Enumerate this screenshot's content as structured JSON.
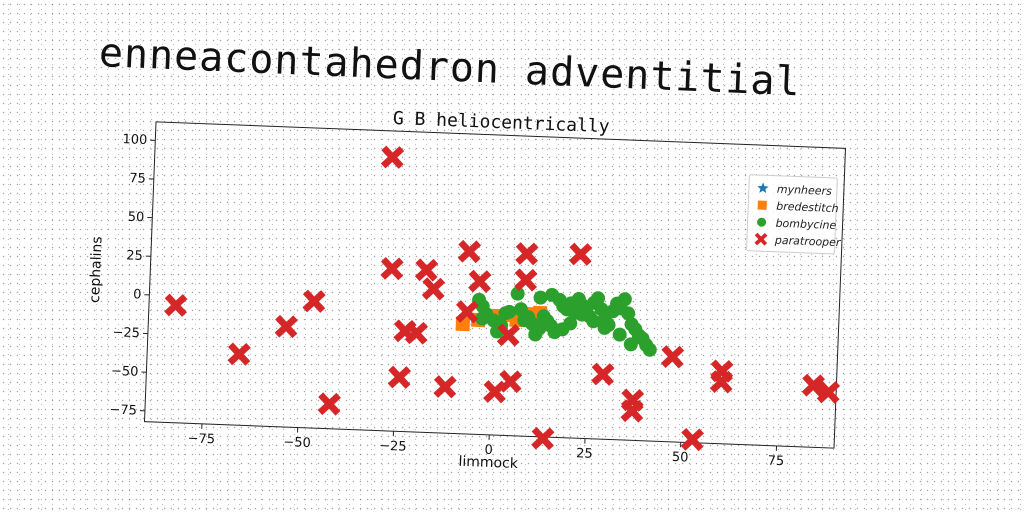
{
  "page": {
    "title": "enneacontahedron adventitial"
  },
  "chart_data": {
    "type": "scatter",
    "title": "G B heliocentrically",
    "xlabel": "limmock",
    "ylabel": "cephalins",
    "xlim": [
      -90,
      90
    ],
    "ylim": [
      -82,
      112
    ],
    "x_ticks": [
      -75,
      -50,
      -25,
      0,
      25,
      50,
      75
    ],
    "y_ticks": [
      100,
      75,
      50,
      25,
      0,
      -25,
      -50,
      -75
    ],
    "grid": false,
    "legend_position": "top-right",
    "series": [
      {
        "name": "mynheers",
        "marker": "star",
        "color": "#1f77b4",
        "points": []
      },
      {
        "name": "bredestitch",
        "marker": "square",
        "color": "#ff7f0e",
        "points": [
          [
            -8,
            -11
          ],
          [
            -4,
            -8
          ],
          [
            1,
            -5
          ],
          [
            5,
            -4
          ],
          [
            9,
            -3
          ],
          [
            10,
            -6
          ],
          [
            12,
            -2
          ],
          [
            6,
            -7
          ]
        ]
      },
      {
        "name": "bombycine",
        "marker": "circle",
        "color": "#2ca02c",
        "points": [
          [
            -4,
            5
          ],
          [
            -3,
            1
          ],
          [
            -2,
            -4
          ],
          [
            -3,
            -7
          ],
          [
            0,
            -8
          ],
          [
            1,
            -15
          ],
          [
            2,
            -11
          ],
          [
            3,
            -3
          ],
          [
            4,
            -2
          ],
          [
            6,
            10
          ],
          [
            7,
            0
          ],
          [
            8,
            -7
          ],
          [
            9,
            -5
          ],
          [
            10,
            -9
          ],
          [
            11,
            -16
          ],
          [
            12,
            -12
          ],
          [
            13,
            -4
          ],
          [
            14,
            -7
          ],
          [
            15,
            -10
          ],
          [
            16,
            -14
          ],
          [
            17,
            7
          ],
          [
            18,
            3
          ],
          [
            19,
            1
          ],
          [
            20,
            5
          ],
          [
            21,
            -1
          ],
          [
            22,
            8
          ],
          [
            23,
            4
          ],
          [
            24,
            2
          ],
          [
            25,
            -3
          ],
          [
            26,
            6
          ],
          [
            27,
            9
          ],
          [
            28,
            2
          ],
          [
            29,
            -4
          ],
          [
            30,
            -8
          ],
          [
            31,
            1
          ],
          [
            32,
            6
          ],
          [
            33,
            3
          ],
          [
            34,
            9
          ],
          [
            35,
            0
          ],
          [
            36,
            -7
          ],
          [
            37,
            -10
          ],
          [
            38,
            -14
          ],
          [
            39,
            -16
          ],
          [
            40,
            -20
          ],
          [
            41,
            -23
          ],
          [
            36,
            -20
          ],
          [
            33,
            -14
          ],
          [
            29,
            -10
          ],
          [
            26,
            -6
          ],
          [
            23,
            -2
          ],
          [
            20,
            -8
          ],
          [
            18,
            -12
          ],
          [
            15,
            10
          ],
          [
            12,
            8
          ]
        ]
      },
      {
        "name": "paratrooper",
        "marker": "x",
        "color": "#d62728",
        "points": [
          [
            -83,
            -6
          ],
          [
            -66,
            -36
          ],
          [
            -54,
            -17
          ],
          [
            -47,
            0
          ],
          [
            -42,
            -66
          ],
          [
            -28,
            95
          ],
          [
            -27,
            23
          ],
          [
            -24,
            -47
          ],
          [
            -23,
            -17
          ],
          [
            -20,
            -18
          ],
          [
            -18,
            23
          ],
          [
            -16,
            11
          ],
          [
            -12,
            -52
          ],
          [
            -7,
            36
          ],
          [
            -7,
            -3
          ],
          [
            -4,
            17
          ],
          [
            1,
            -54
          ],
          [
            4,
            -17
          ],
          [
            5,
            -47
          ],
          [
            8,
            36
          ],
          [
            8,
            19
          ],
          [
            14,
            -83
          ],
          [
            22,
            37
          ],
          [
            29,
            -40
          ],
          [
            37,
            -56
          ],
          [
            37,
            -63
          ],
          [
            47,
            -27
          ],
          [
            53,
            -80
          ],
          [
            60,
            -35
          ],
          [
            60,
            -42
          ],
          [
            84,
            -42
          ],
          [
            88,
            -46
          ]
        ]
      }
    ]
  }
}
